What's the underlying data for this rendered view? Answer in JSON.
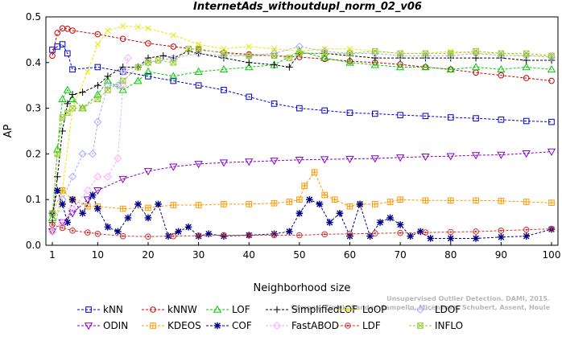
{
  "chart_data": {
    "type": "line",
    "title": "InternetAds_withoutdupl_norm_02_v06",
    "xlabel": "Neighborhood size",
    "ylabel": "AP",
    "xlim": [
      1,
      100
    ],
    "ylim": [
      0,
      0.5
    ],
    "x_ticks": [
      "1",
      "10",
      "20",
      "30",
      "40",
      "50",
      "60",
      "70",
      "80",
      "90",
      "100"
    ],
    "y_ticks": [
      "0.0",
      "0.1",
      "0.2",
      "0.3",
      "0.4",
      "0.5"
    ],
    "grid": false,
    "legend_position": "bottom",
    "watermark_lines": [
      "Unsupervised Outlier Detection. DAMI, 2015.",
      "Campos, Zimek, Sander, Campello, Micenkova, Schubert, Assent, Houle"
    ],
    "series": [
      {
        "name": "kNN",
        "color": "#0000cc",
        "marker": "square",
        "x": [
          1,
          2,
          3,
          4,
          5,
          10,
          15,
          20,
          25,
          30,
          35,
          40,
          45,
          50,
          55,
          60,
          65,
          70,
          75,
          80,
          85,
          90,
          95,
          100
        ],
        "values": [
          0.428,
          0.435,
          0.44,
          0.42,
          0.385,
          0.39,
          0.38,
          0.37,
          0.36,
          0.35,
          0.34,
          0.325,
          0.31,
          0.3,
          0.295,
          0.29,
          0.288,
          0.285,
          0.283,
          0.28,
          0.278,
          0.275,
          0.272,
          0.27
        ]
      },
      {
        "name": "kNNW",
        "color": "#cc0000",
        "marker": "circle",
        "x": [
          1,
          2,
          3,
          4,
          5,
          10,
          15,
          20,
          25,
          30,
          35,
          40,
          45,
          50,
          55,
          60,
          65,
          70,
          75,
          80,
          85,
          90,
          95,
          100
        ],
        "values": [
          0.415,
          0.465,
          0.475,
          0.474,
          0.47,
          0.462,
          0.452,
          0.442,
          0.435,
          0.428,
          0.422,
          0.418,
          0.415,
          0.412,
          0.408,
          0.403,
          0.4,
          0.396,
          0.39,
          0.385,
          0.378,
          0.372,
          0.366,
          0.36
        ]
      },
      {
        "name": "LOF",
        "color": "#00cc00",
        "marker": "triangle-up",
        "x": [
          1,
          2,
          3,
          4,
          5,
          7,
          10,
          12,
          15,
          18,
          20,
          25,
          30,
          35,
          40,
          45,
          50,
          55,
          60,
          65,
          70,
          75,
          80,
          85,
          90,
          95,
          100
        ],
        "values": [
          0.06,
          0.21,
          0.32,
          0.34,
          0.32,
          0.3,
          0.33,
          0.36,
          0.34,
          0.36,
          0.38,
          0.37,
          0.38,
          0.385,
          0.39,
          0.395,
          0.425,
          0.41,
          0.4,
          0.395,
          0.39,
          0.39,
          0.385,
          0.39,
          0.385,
          0.39,
          0.385
        ]
      },
      {
        "name": "SimplifiedLOF",
        "color": "#000000",
        "marker": "plus",
        "x": [
          1,
          2,
          3,
          4,
          5,
          7,
          10,
          12,
          15,
          18,
          20,
          23,
          25,
          28,
          30,
          35,
          40,
          45,
          48,
          50,
          55,
          60,
          65,
          70,
          75,
          80,
          85,
          90,
          95,
          100
        ],
        "values": [
          0.05,
          0.15,
          0.25,
          0.31,
          0.33,
          0.335,
          0.35,
          0.37,
          0.39,
          0.39,
          0.41,
          0.415,
          0.41,
          0.425,
          0.42,
          0.41,
          0.4,
          0.395,
          0.39,
          0.42,
          0.42,
          0.415,
          0.41,
          0.41,
          0.41,
          0.41,
          0.41,
          0.41,
          0.405,
          0.405
        ]
      },
      {
        "name": "LoOP",
        "color": "#e8e800",
        "marker": "x",
        "x": [
          1,
          3,
          5,
          8,
          10,
          12,
          15,
          18,
          20,
          25,
          30,
          35,
          40,
          45,
          50,
          55,
          60,
          65,
          70,
          75,
          80,
          85,
          90,
          95,
          100
        ],
        "values": [
          0.03,
          0.12,
          0.3,
          0.38,
          0.44,
          0.47,
          0.48,
          0.478,
          0.475,
          0.46,
          0.44,
          0.43,
          0.435,
          0.43,
          0.425,
          0.43,
          0.43,
          0.425,
          0.42,
          0.42,
          0.425,
          0.42,
          0.42,
          0.415,
          0.415
        ]
      },
      {
        "name": "LDOF",
        "color": "#aaaaff",
        "marker": "diamond",
        "x": [
          1,
          3,
          5,
          7,
          9,
          10,
          12,
          14,
          15,
          20,
          25,
          30,
          35,
          40,
          45,
          50,
          55,
          60,
          65,
          70,
          75,
          80,
          85,
          90,
          95,
          100
        ],
        "values": [
          0.03,
          0.1,
          0.15,
          0.2,
          0.2,
          0.27,
          0.35,
          0.35,
          0.38,
          0.4,
          0.41,
          0.42,
          0.415,
          0.415,
          0.42,
          0.435,
          0.425,
          0.42,
          0.42,
          0.415,
          0.415,
          0.415,
          0.42,
          0.415,
          0.415,
          0.412
        ]
      },
      {
        "name": "ODIN",
        "color": "#8800cc",
        "marker": "triangle-down",
        "x": [
          1,
          3,
          5,
          8,
          10,
          15,
          20,
          25,
          30,
          35,
          40,
          45,
          50,
          55,
          60,
          65,
          70,
          75,
          80,
          85,
          90,
          95,
          100
        ],
        "values": [
          0.03,
          0.05,
          0.07,
          0.1,
          0.12,
          0.145,
          0.162,
          0.172,
          0.178,
          0.181,
          0.183,
          0.185,
          0.187,
          0.188,
          0.189,
          0.19,
          0.192,
          0.194,
          0.195,
          0.197,
          0.198,
          0.201,
          0.205
        ]
      },
      {
        "name": "KDEOS",
        "color": "#ff9900",
        "marker": "square-cross",
        "x": [
          1,
          3,
          5,
          8,
          10,
          15,
          20,
          25,
          30,
          35,
          40,
          45,
          48,
          50,
          51,
          53,
          55,
          57,
          60,
          62,
          65,
          68,
          70,
          75,
          80,
          85,
          90,
          95,
          100
        ],
        "values": [
          0.07,
          0.12,
          0.1,
          0.085,
          0.085,
          0.08,
          0.082,
          0.088,
          0.088,
          0.09,
          0.09,
          0.092,
          0.095,
          0.1,
          0.13,
          0.16,
          0.11,
          0.1,
          0.085,
          0.09,
          0.09,
          0.095,
          0.1,
          0.098,
          0.098,
          0.098,
          0.097,
          0.095,
          0.093
        ]
      },
      {
        "name": "COF",
        "color": "#000088",
        "marker": "asterisk",
        "x": [
          1,
          2,
          3,
          4,
          5,
          7,
          9,
          10,
          12,
          14,
          16,
          18,
          20,
          22,
          24,
          26,
          28,
          30,
          32,
          35,
          40,
          45,
          48,
          50,
          52,
          54,
          56,
          58,
          60,
          62,
          64,
          66,
          68,
          70,
          72,
          74,
          76,
          80,
          85,
          90,
          95,
          100
        ],
        "values": [
          0.07,
          0.12,
          0.09,
          0.05,
          0.1,
          0.07,
          0.11,
          0.08,
          0.04,
          0.03,
          0.06,
          0.09,
          0.06,
          0.09,
          0.02,
          0.03,
          0.04,
          0.02,
          0.025,
          0.02,
          0.022,
          0.025,
          0.03,
          0.07,
          0.1,
          0.09,
          0.05,
          0.07,
          0.02,
          0.09,
          0.02,
          0.05,
          0.06,
          0.045,
          0.02,
          0.03,
          0.015,
          0.015,
          0.015,
          0.018,
          0.02,
          0.035
        ]
      },
      {
        "name": "FastABOD",
        "color": "#ffaaff",
        "marker": "diamond",
        "x": [
          1,
          3,
          5,
          8,
          10,
          12,
          14,
          15,
          16
        ],
        "values": [
          0.03,
          0.05,
          0.08,
          0.12,
          0.15,
          0.15,
          0.19,
          0.35,
          0.41
        ]
      },
      {
        "name": "LDF",
        "color": "#cc3333",
        "marker": "circle-dot",
        "x": [
          1,
          3,
          5,
          8,
          10,
          15,
          20,
          25,
          30,
          35,
          40,
          45,
          50,
          55,
          60,
          65,
          70,
          75,
          80,
          85,
          90,
          95,
          100
        ],
        "values": [
          0.045,
          0.038,
          0.032,
          0.028,
          0.025,
          0.02,
          0.019,
          0.02,
          0.021,
          0.022,
          0.022,
          0.022,
          0.022,
          0.024,
          0.025,
          0.026,
          0.027,
          0.028,
          0.029,
          0.03,
          0.032,
          0.034,
          0.036
        ]
      },
      {
        "name": "INFLO",
        "color": "#99cc33",
        "marker": "square-x",
        "x": [
          1,
          2,
          3,
          4,
          5,
          7,
          10,
          12,
          15,
          18,
          20,
          22,
          25,
          28,
          30,
          35,
          40,
          45,
          48,
          50,
          55,
          60,
          65,
          70,
          75,
          80,
          85,
          90,
          95,
          100
        ],
        "values": [
          0.07,
          0.2,
          0.28,
          0.29,
          0.3,
          0.3,
          0.32,
          0.34,
          0.36,
          0.39,
          0.4,
          0.405,
          0.4,
          0.43,
          0.43,
          0.42,
          0.415,
          0.415,
          0.41,
          0.42,
          0.42,
          0.42,
          0.425,
          0.42,
          0.42,
          0.42,
          0.425,
          0.42,
          0.42,
          0.415
        ]
      }
    ]
  }
}
